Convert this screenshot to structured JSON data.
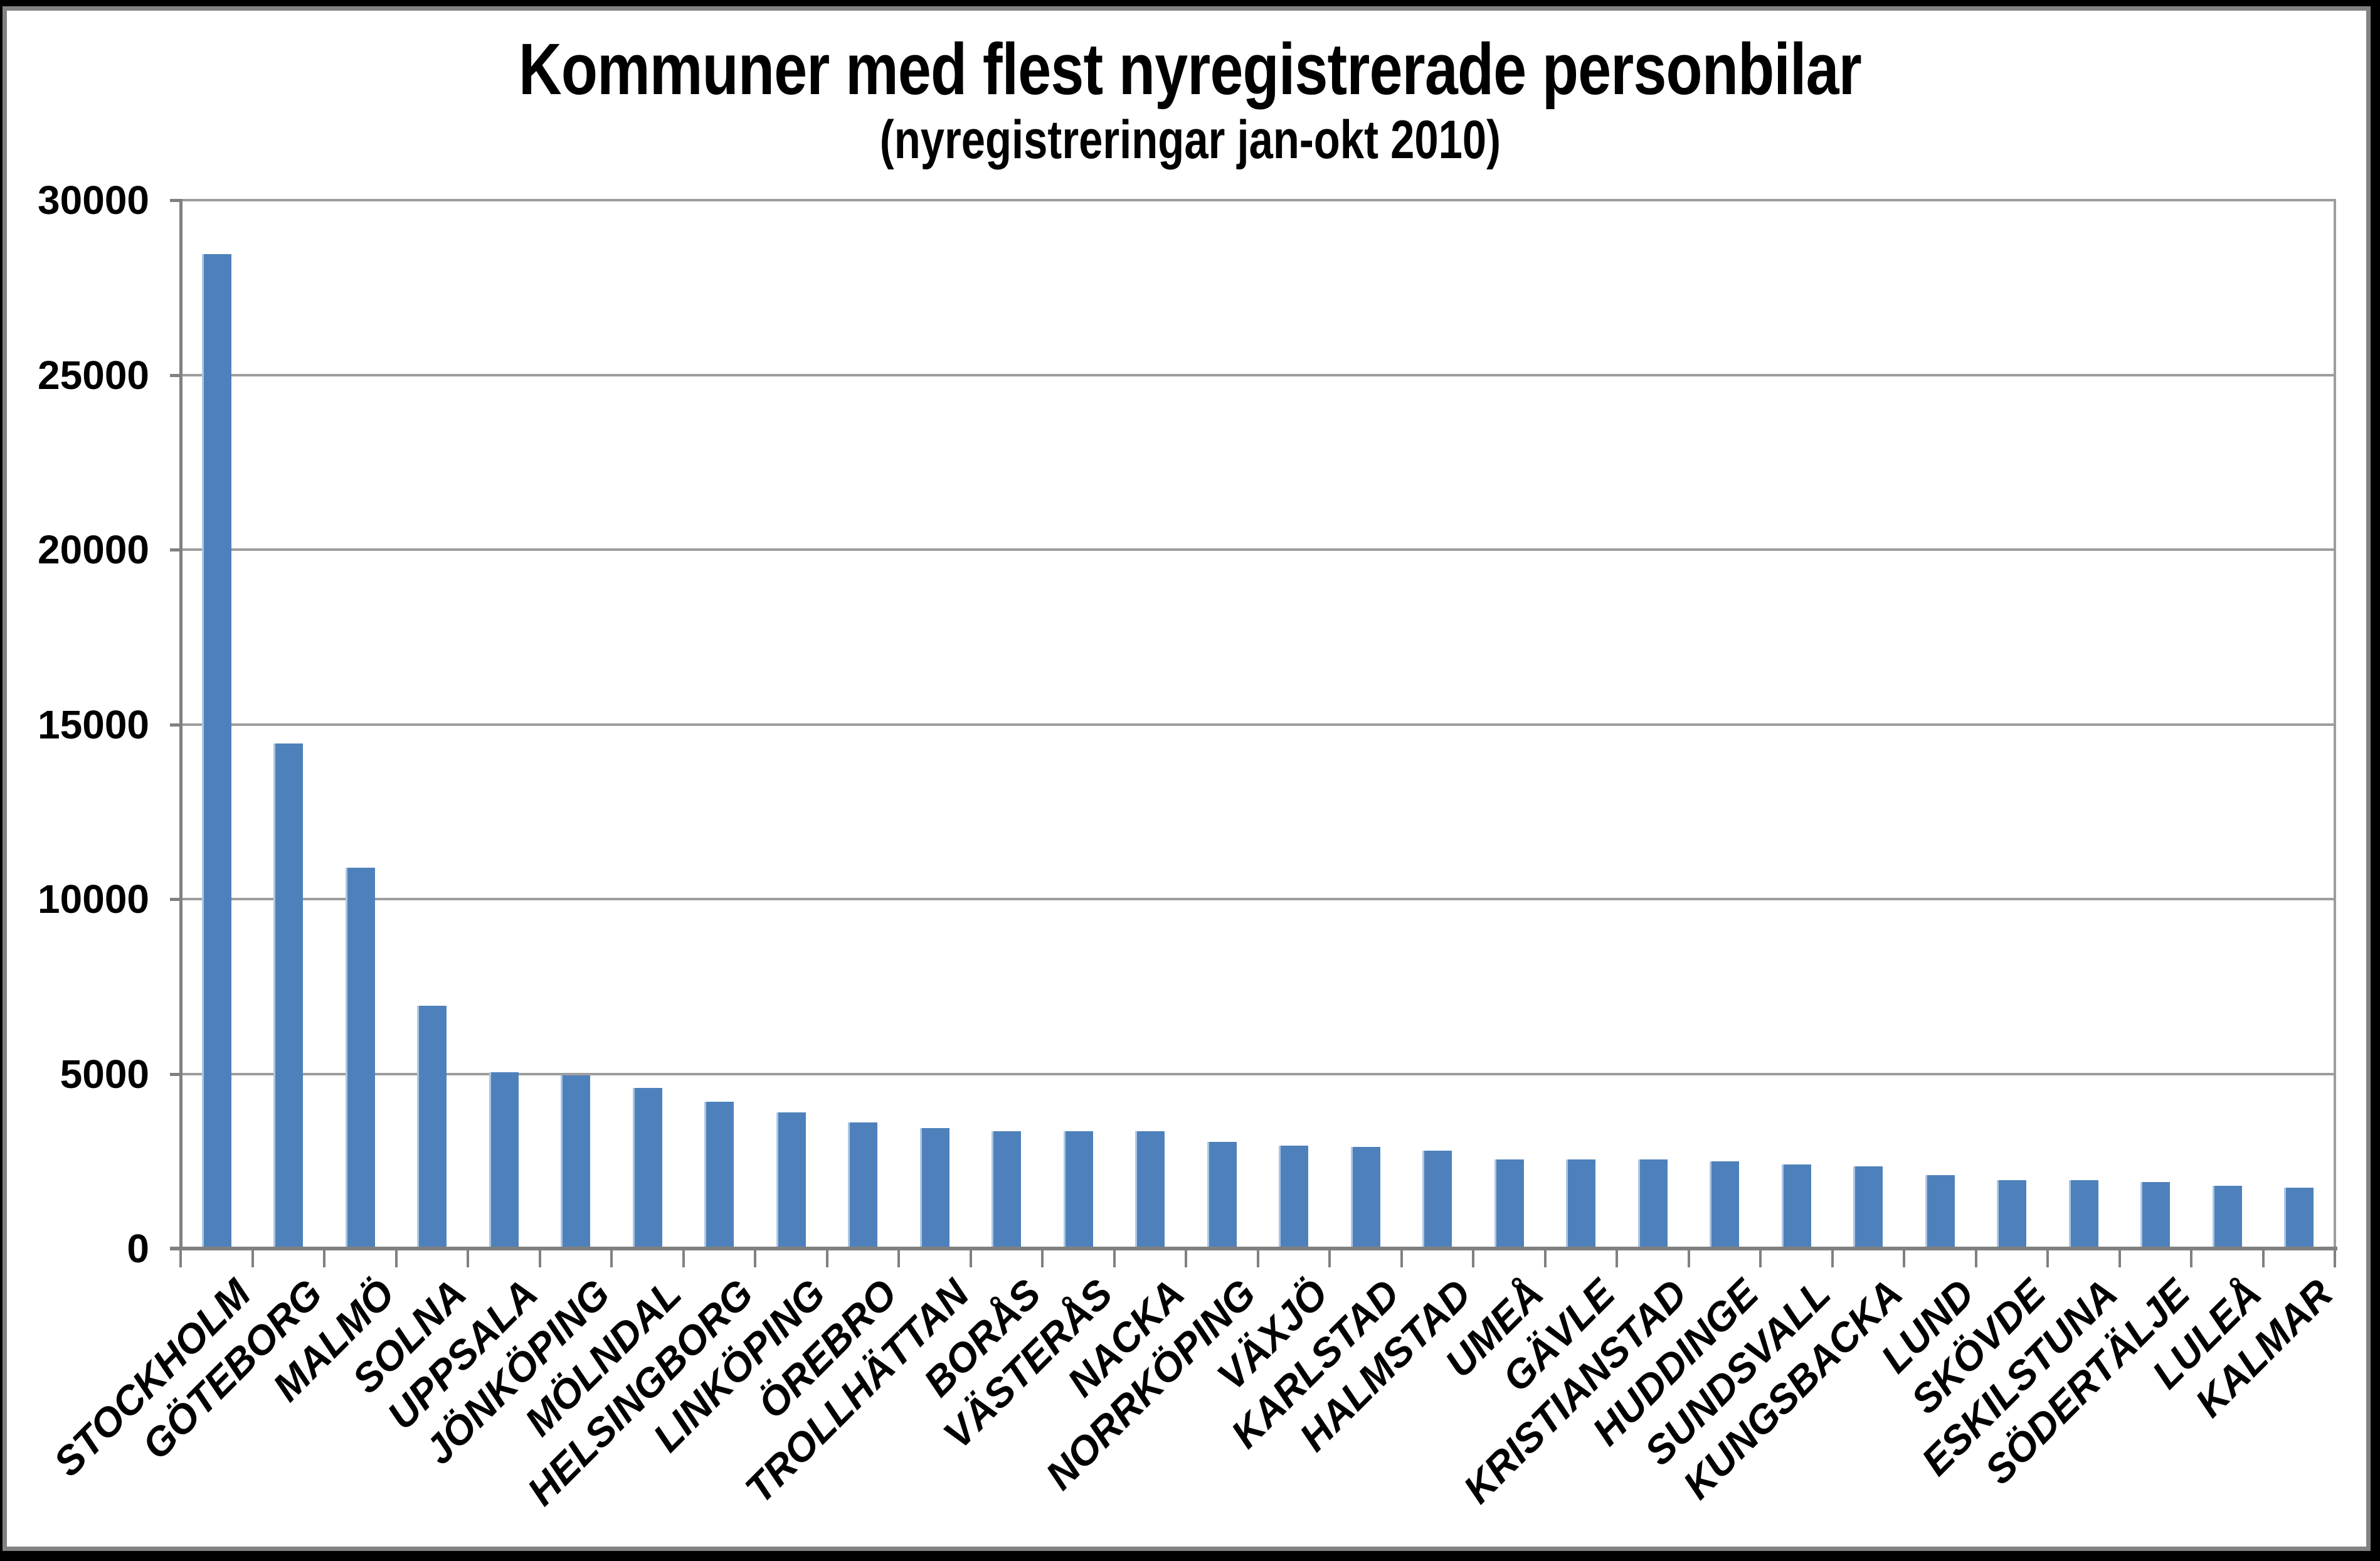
{
  "chart_data": {
    "type": "bar",
    "title": "Kommuner med flest nyregistrerade personbilar",
    "subtitle": "(nyregistreringar jan-okt 2010)",
    "categories": [
      "STOCKHOLM",
      "GÖTEBORG",
      "MALMÖ",
      "SOLNA",
      "UPPSALA",
      "JÖNKÖPING",
      "MÖLNDAL",
      "HELSINGBORG",
      "LINKÖPING",
      "ÖREBRO",
      "TROLLHÄTTAN",
      "BORÅS",
      "VÄSTERÅS",
      "NACKA",
      "NORRKÖPING",
      "VÄXJÖ",
      "KARLSTAD",
      "HALMSTAD",
      "UMEÅ",
      "GÄVLE",
      "KRISTIANSTAD",
      "HUDDINGE",
      "SUNDSVALL",
      "KUNGSBACKA",
      "LUND",
      "SKÖVDE",
      "ESKILSTUNA",
      "SÖDERTÄLJE",
      "LULEÅ",
      "KALMAR"
    ],
    "values": [
      28450,
      14450,
      10900,
      6950,
      5050,
      4950,
      4600,
      4200,
      3900,
      3600,
      3450,
      3350,
      3350,
      3350,
      3050,
      2950,
      2900,
      2800,
      2550,
      2550,
      2550,
      2500,
      2400,
      2350,
      2100,
      1950,
      1950,
      1900,
      1800,
      1750
    ],
    "xlabel": "",
    "ylabel": "",
    "ylim": [
      0,
      30000
    ],
    "ytick_interval": 5000,
    "ytick_labels": [
      "0",
      "5000",
      "10000",
      "15000",
      "20000",
      "25000",
      "30000"
    ],
    "grid": true,
    "legend": "none",
    "colors": {
      "bar_fill": "#4E81BB",
      "bar_left_edge": "#AFC6E2",
      "gridline": "#9D9D9D",
      "axis": "#808080",
      "text": "#000000",
      "plot_background": "#FFFFFF",
      "panel_border": "#828282",
      "outer_border": "#000000"
    }
  }
}
